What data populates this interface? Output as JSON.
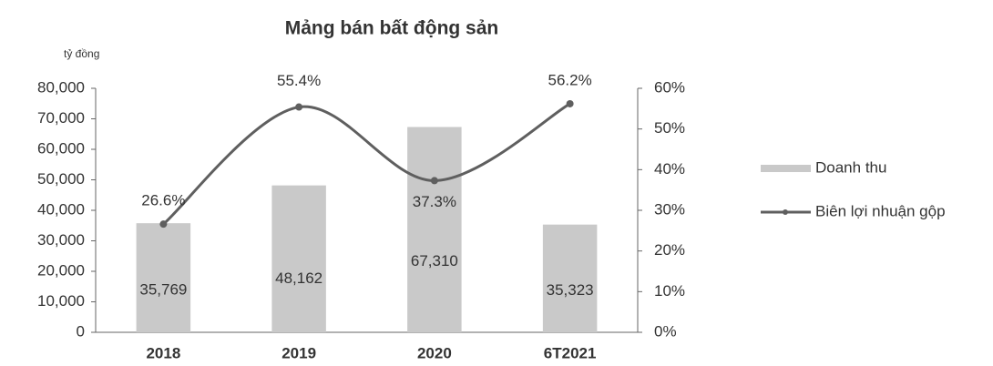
{
  "chart_data": {
    "type": "bar-line",
    "title": "Mảng bán bất động sản",
    "y_label": "tỷ đồng",
    "categories": [
      "2018",
      "2019",
      "2020",
      "6T2021"
    ],
    "series": [
      {
        "name": "Doanh thu",
        "type": "bar",
        "color": "#c9c9c9",
        "values": [
          35769,
          48162,
          67310,
          35323
        ],
        "value_labels": [
          "35,769",
          "48,162",
          "67,310",
          "35,323"
        ]
      },
      {
        "name": "Biên lợi nhuận gộp",
        "type": "line",
        "axis": "y2",
        "color": "#5f5f5f",
        "values": [
          26.6,
          55.4,
          37.3,
          56.2
        ],
        "value_labels": [
          "26.6%",
          "55.4%",
          "37.3%",
          "56.2%"
        ]
      }
    ],
    "ylim": [
      0,
      80000
    ],
    "yticks": [
      0,
      {
        "value": 10000,
        "label": "10,000"
      },
      {
        "value": 20000,
        "label": "20,000"
      },
      {
        "value": 30000,
        "label": "30,000"
      },
      {
        "value": 40000,
        "label": "40,000"
      },
      {
        "value": 50000,
        "label": "50,000"
      },
      {
        "value": 60000,
        "label": "60,000"
      },
      {
        "value": 70000,
        "label": "70,000"
      },
      {
        "value": 80000,
        "label": "80,000"
      }
    ],
    "y2lim": [
      0,
      60
    ],
    "y2ticks": [
      {
        "value": 0,
        "label": "0%"
      },
      {
        "value": 10,
        "label": "10%"
      },
      {
        "value": 20,
        "label": "20%"
      },
      {
        "value": 30,
        "label": "30%"
      },
      {
        "value": 40,
        "label": "40%"
      },
      {
        "value": 50,
        "label": "50%"
      },
      {
        "value": 60,
        "label": "60%"
      }
    ],
    "legend": "right"
  }
}
